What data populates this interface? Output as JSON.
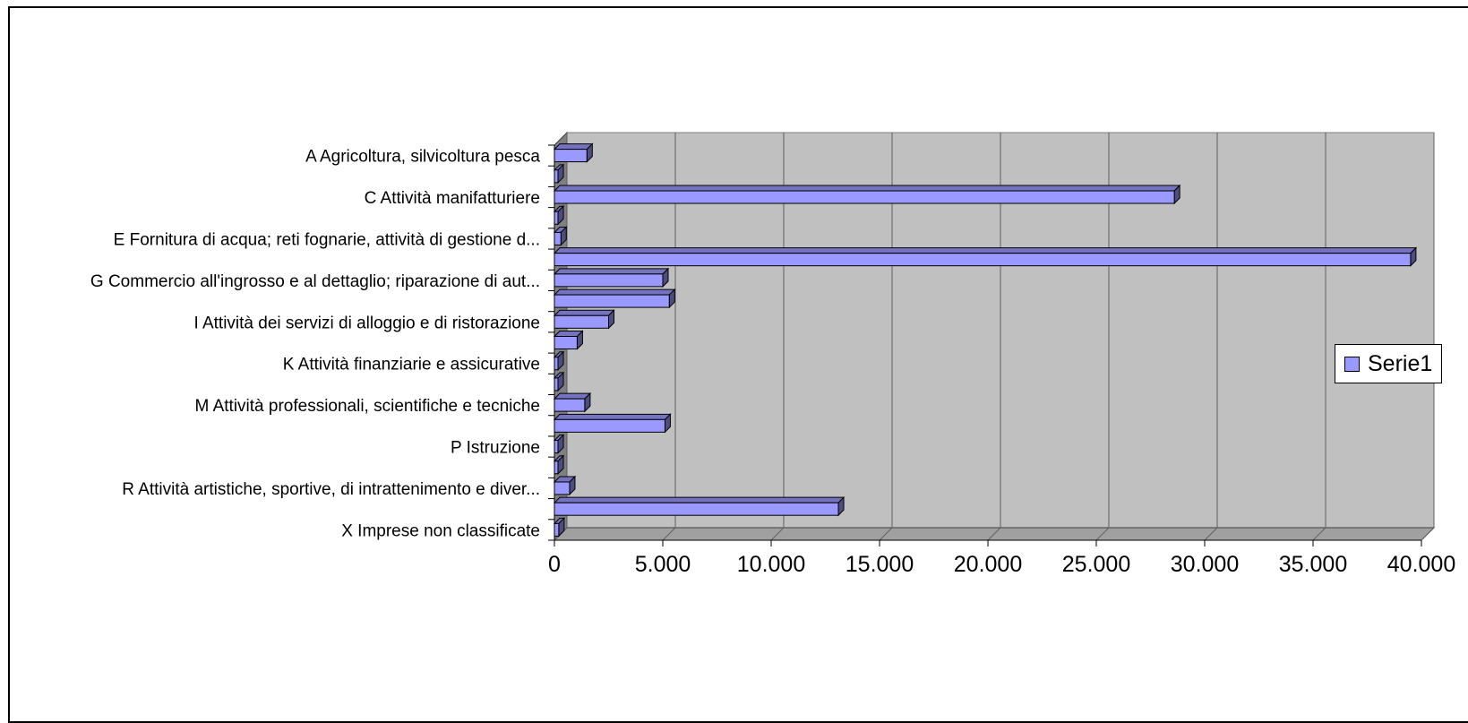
{
  "chart_data": {
    "type": "bar",
    "orientation": "horizontal",
    "three_d": true,
    "categories": [
      "A Agricoltura, silvicoltura pesca",
      "",
      "C Attività manifatturiere",
      "",
      "E Fornitura di acqua; reti fognarie, attività di gestione d...",
      "",
      "G Commercio all'ingrosso e al dettaglio; riparazione di aut...",
      "",
      "I Attività dei servizi di alloggio e di ristorazione",
      "",
      "K Attività finanziarie e assicurative",
      "",
      "M Attività professionali, scientifiche e tecniche",
      "",
      "P Istruzione",
      "",
      "R Attività artistiche, sportive, di intrattenimento e diver...",
      "",
      "X Imprese non classificate"
    ],
    "series": [
      {
        "name": "Serie1",
        "color": "#9999ff",
        "values": [
          1500,
          20,
          28600,
          30,
          300,
          39500,
          5000,
          5300,
          2500,
          1050,
          60,
          80,
          1400,
          5100,
          150,
          80,
          700,
          13100,
          200
        ]
      }
    ],
    "xlim": [
      0,
      40000
    ],
    "xticks": [
      "0",
      "5.000",
      "10.000",
      "15.000",
      "20.000",
      "25.000",
      "30.000",
      "35.000",
      "40.000"
    ],
    "xlabel": "",
    "ylabel": "",
    "title": "",
    "grid": true,
    "plot_background": "#c0c0c0",
    "legend_position": "right"
  }
}
